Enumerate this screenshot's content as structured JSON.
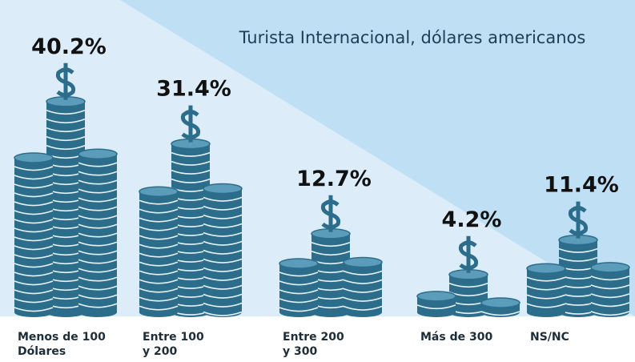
{
  "chart_data": {
    "type": "bar",
    "title": "Turista Internacional, dólares americanos",
    "categories": [
      "Menos de 100\nDólares",
      "Entre 100\ny 200",
      "Entre 200\ny 300",
      "Más de 300",
      "NS/NC"
    ],
    "values": [
      40.2,
      31.4,
      12.7,
      4.2,
      11.4
    ],
    "value_labels": [
      "40.2%",
      "31.4%",
      "12.7%",
      "4.2%",
      "11.4%"
    ],
    "color": "#2d6d8c"
  }
}
